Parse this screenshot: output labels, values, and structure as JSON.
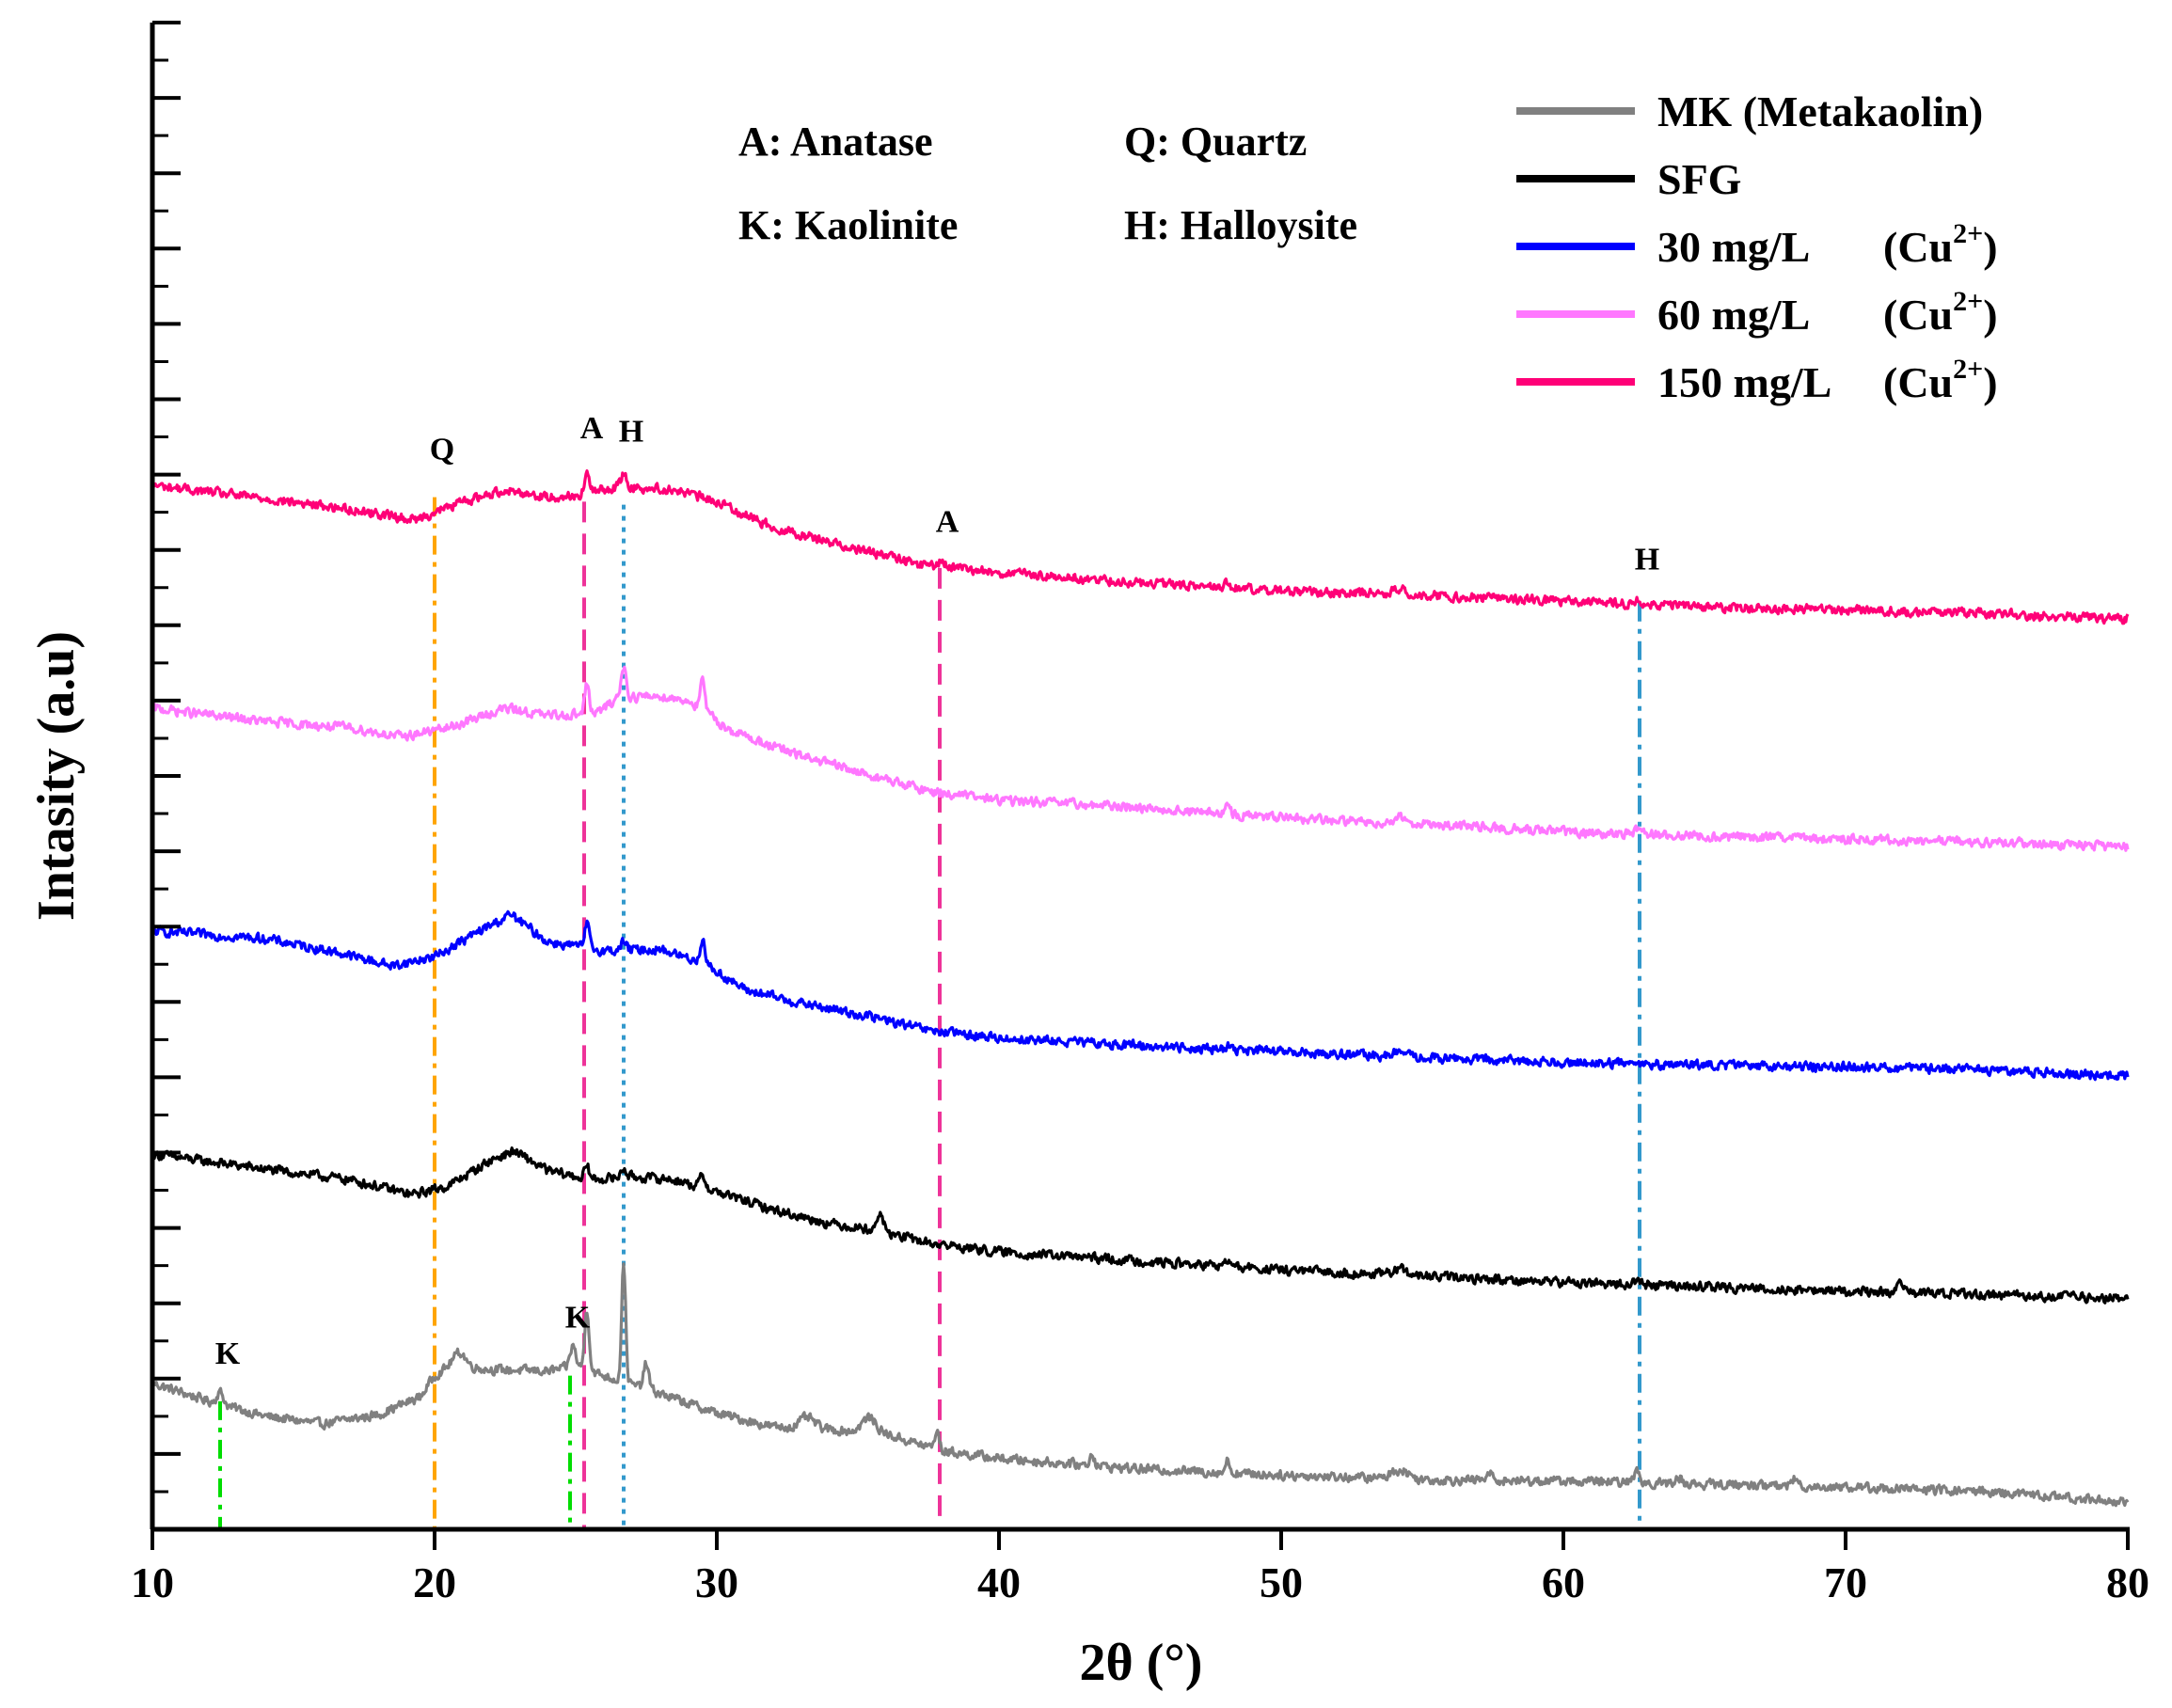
{
  "chart_data": {
    "type": "line",
    "title": "",
    "xlabel": "2θ (°)",
    "ylabel": "Intasity (a.u)",
    "xlim": [
      10,
      80
    ],
    "ylim": [
      0,
      100
    ],
    "x_ticks": [
      "10",
      "20",
      "30",
      "40",
      "50",
      "60",
      "70",
      "80"
    ],
    "x_tick_values": [
      10,
      20,
      30,
      40,
      50,
      60,
      70,
      80
    ],
    "y_tick_count": 20,
    "grid": false,
    "legend_position": "top-right",
    "phase_key": [
      {
        "code": "A",
        "label": "A: Anatase"
      },
      {
        "code": "Q",
        "label": "Q: Quartz"
      },
      {
        "code": "K",
        "label": "K: Kaolinite"
      },
      {
        "code": "H",
        "label": "H: Halloysite"
      }
    ],
    "series": [
      {
        "name": "MK (Metakaolin)",
        "legend_main": "MK (Metakaolin)",
        "legend_ion": "",
        "color": "#808080",
        "baseline": [
          [
            10,
            9.7
          ],
          [
            12,
            8.5
          ],
          [
            14,
            7.5
          ],
          [
            16,
            7.0
          ],
          [
            18,
            7.6
          ],
          [
            19.5,
            8.8
          ],
          [
            20,
            10.2
          ],
          [
            20.6,
            10.9
          ],
          [
            22,
            10.6
          ],
          [
            24,
            10.5
          ],
          [
            25,
            10.8
          ],
          [
            26,
            10.2
          ],
          [
            28,
            9.0
          ],
          [
            30,
            7.7
          ],
          [
            32,
            6.8
          ],
          [
            33.5,
            6.7
          ],
          [
            36,
            6.3
          ],
          [
            38,
            5.2
          ],
          [
            40,
            4.7
          ],
          [
            45,
            4.0
          ],
          [
            50,
            3.6
          ],
          [
            55,
            3.3
          ],
          [
            60,
            3.2
          ],
          [
            65,
            3.0
          ],
          [
            70,
            2.8
          ],
          [
            75,
            2.5
          ],
          [
            80,
            1.8
          ]
        ],
        "peaks": [
          [
            12.4,
            0.8,
            0.12
          ],
          [
            20.9,
            0.9,
            0.2
          ],
          [
            24.9,
            1.4,
            0.1
          ],
          [
            25.4,
            4.0,
            0.08
          ],
          [
            26.7,
            8.0,
            0.07
          ],
          [
            27.5,
            1.7,
            0.09
          ],
          [
            33.2,
            0.7,
            0.25
          ],
          [
            35.4,
            1.0,
            0.25
          ],
          [
            37.8,
            1.2,
            0.08
          ],
          [
            43.3,
            0.8,
            0.08
          ],
          [
            48.1,
            0.8,
            0.08
          ],
          [
            54.2,
            0.6,
            0.3
          ],
          [
            57.4,
            0.4,
            0.12
          ],
          [
            62.6,
            0.8,
            0.1
          ],
          [
            64.1,
            0.4,
            0.1
          ],
          [
            68.2,
            0.5,
            0.1
          ]
        ]
      },
      {
        "name": "SFG",
        "legend_main": "SFG",
        "legend_ion": "",
        "color": "#000000",
        "baseline": [
          [
            10,
            24.9
          ],
          [
            14,
            23.9
          ],
          [
            17,
            23.2
          ],
          [
            19.2,
            22.2
          ],
          [
            20.5,
            22.8
          ],
          [
            22,
            24.5
          ],
          [
            22.8,
            25.1
          ],
          [
            24,
            23.8
          ],
          [
            25.5,
            23.2
          ],
          [
            27,
            23.4
          ],
          [
            28.5,
            23.2
          ],
          [
            30,
            22.4
          ],
          [
            32,
            21.2
          ],
          [
            34,
            20.3
          ],
          [
            35.5,
            19.9
          ],
          [
            37.5,
            19.0
          ],
          [
            40,
            18.4
          ],
          [
            45,
            17.8
          ],
          [
            50,
            17.2
          ],
          [
            55,
            16.8
          ],
          [
            60,
            16.4
          ],
          [
            65,
            16.1
          ],
          [
            70,
            15.8
          ],
          [
            75,
            15.6
          ],
          [
            80,
            15.3
          ]
        ],
        "peaks": [
          [
            25.4,
            0.8,
            0.09
          ],
          [
            26.7,
            0.6,
            0.09
          ],
          [
            29.5,
            0.8,
            0.1
          ],
          [
            35.8,
            1.3,
            0.1
          ],
          [
            48.1,
            0.4,
            0.1
          ],
          [
            54.2,
            0.4,
            0.25
          ],
          [
            62.6,
            0.3,
            0.1
          ],
          [
            71.9,
            0.5,
            0.12
          ]
        ]
      },
      {
        "name": "30 mg/L (Cu2+)",
        "legend_main": "30 mg/L",
        "legend_ion": "Cu",
        "color": "#0000ff",
        "baseline": [
          [
            10,
            39.7
          ],
          [
            14,
            39.2
          ],
          [
            16.5,
            38.3
          ],
          [
            18.5,
            37.4
          ],
          [
            20,
            38.0
          ],
          [
            21.5,
            39.6
          ],
          [
            22.7,
            40.8
          ],
          [
            24,
            39.0
          ],
          [
            26,
            38.4
          ],
          [
            28,
            38.5
          ],
          [
            29.5,
            37.6
          ],
          [
            31,
            35.8
          ],
          [
            33,
            34.9
          ],
          [
            35.5,
            34.0
          ],
          [
            37.5,
            33.1
          ],
          [
            40,
            32.6
          ],
          [
            45,
            32.1
          ],
          [
            50,
            31.7
          ],
          [
            55,
            31.3
          ],
          [
            60,
            31.0
          ],
          [
            65,
            30.8
          ],
          [
            70,
            30.7
          ],
          [
            75,
            30.5
          ],
          [
            80,
            30.1
          ]
        ],
        "peaks": [
          [
            25.4,
            1.6,
            0.08
          ],
          [
            26.7,
            0.6,
            0.09
          ],
          [
            29.5,
            1.5,
            0.09
          ],
          [
            48.1,
            0.2,
            0.1
          ],
          [
            54.2,
            0.3,
            0.25
          ],
          [
            62.6,
            0.2,
            0.1
          ]
        ]
      },
      {
        "name": "60 mg/L (Cu2+)",
        "legend_main": "60 mg/L",
        "legend_ion": "Cu",
        "color": "#ff77ff",
        "baseline": [
          [
            10,
            54.5
          ],
          [
            14,
            53.6
          ],
          [
            17,
            53.2
          ],
          [
            18.8,
            52.6
          ],
          [
            20.5,
            53.2
          ],
          [
            22.5,
            54.5
          ],
          [
            24,
            54.0
          ],
          [
            25.8,
            54.2
          ],
          [
            26.5,
            55.2
          ],
          [
            28,
            55.3
          ],
          [
            29,
            55.0
          ],
          [
            30.5,
            53.0
          ],
          [
            32.5,
            51.6
          ],
          [
            35.5,
            50.0
          ],
          [
            37.5,
            49.0
          ],
          [
            40,
            48.4
          ],
          [
            45,
            47.9
          ],
          [
            50,
            47.2
          ],
          [
            55,
            46.8
          ],
          [
            60,
            46.3
          ],
          [
            65,
            46.0
          ],
          [
            70,
            45.8
          ],
          [
            75,
            45.6
          ],
          [
            80,
            45.3
          ]
        ],
        "peaks": [
          [
            25.4,
            1.9,
            0.08
          ],
          [
            26.7,
            2.0,
            0.09
          ],
          [
            29.5,
            2.0,
            0.08
          ],
          [
            48.1,
            0.4,
            0.1
          ],
          [
            54.2,
            0.4,
            0.25
          ],
          [
            62.6,
            0.3,
            0.1
          ]
        ]
      },
      {
        "name": "150 mg/L (Cu2+)",
        "legend_main": "150 mg/L",
        "legend_ion": "Cu",
        "color": "#ff0077",
        "baseline": [
          [
            10,
            69.3
          ],
          [
            14,
            68.4
          ],
          [
            17,
            67.7
          ],
          [
            19.3,
            67.0
          ],
          [
            21,
            68.2
          ],
          [
            22.5,
            69.0
          ],
          [
            24,
            68.5
          ],
          [
            25,
            68.6
          ],
          [
            26.5,
            69.2
          ],
          [
            28.5,
            69.0
          ],
          [
            30,
            68.2
          ],
          [
            32,
            66.5
          ],
          [
            34.5,
            65.3
          ],
          [
            37.3,
            64.0
          ],
          [
            40,
            63.5
          ],
          [
            45,
            62.8
          ],
          [
            50,
            62.3
          ],
          [
            55,
            62.0
          ],
          [
            60,
            61.6
          ],
          [
            65,
            61.2
          ],
          [
            70,
            61.0
          ],
          [
            75,
            60.8
          ],
          [
            80,
            60.4
          ]
        ],
        "peaks": [
          [
            25.4,
            1.3,
            0.08
          ],
          [
            26.7,
            0.9,
            0.09
          ],
          [
            38.0,
            0.3,
            0.15
          ],
          [
            48.1,
            0.3,
            0.1
          ],
          [
            54.2,
            0.3,
            0.25
          ],
          [
            62.6,
            0.2,
            0.1
          ]
        ]
      }
    ],
    "reference_lines": [
      {
        "x": 12.4,
        "phase": "K",
        "color": "#00dd00",
        "style": "dashdot",
        "y_top": 8.5,
        "label_y": 11.0
      },
      {
        "x": 20.0,
        "phase": "Q",
        "color": "#ffa500",
        "style": "dashdot",
        "y_top": 68.5,
        "label_y": 71.0
      },
      {
        "x": 24.8,
        "phase": "K",
        "color": "#00dd00",
        "style": "dashdot",
        "y_top": 10.2,
        "label_y": 13.4
      },
      {
        "x": 25.3,
        "phase": "A",
        "color": "#ee3399",
        "style": "dashed",
        "y_top": 68.2,
        "label_y": 72.4
      },
      {
        "x": 26.7,
        "phase": "H",
        "color": "#3399cc",
        "style": "dotted",
        "y_top": 68.0,
        "label_y": 72.2
      },
      {
        "x": 37.9,
        "phase": "A",
        "color": "#ee3399",
        "style": "dashed",
        "y_top": 63.8,
        "label_y": 66.2
      },
      {
        "x": 62.7,
        "phase": "H",
        "color": "#3399cc",
        "style": "dashdot",
        "y_top": 61.5,
        "label_y": 63.7
      }
    ]
  }
}
